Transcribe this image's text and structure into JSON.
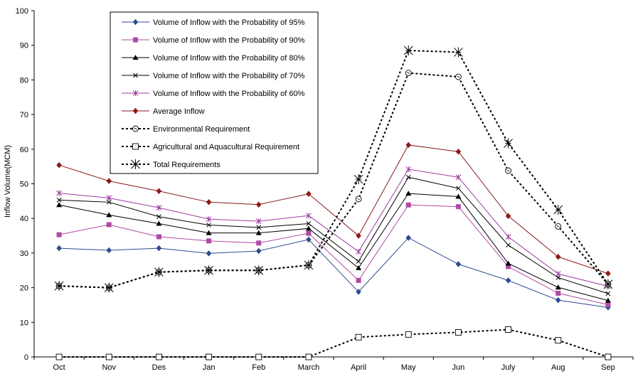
{
  "chart_data": {
    "type": "line",
    "title": "",
    "xlabel": "",
    "ylabel": "Inflow Volume(MCM)",
    "ylim": [
      0,
      100
    ],
    "y_ticks": [
      0,
      10,
      20,
      30,
      40,
      50,
      60,
      70,
      80,
      90,
      100
    ],
    "grid": false,
    "legend_position": "top-center",
    "categories": [
      "Oct",
      "Nov",
      "Des",
      "Jan",
      "Feb",
      "March",
      "April",
      "May",
      "Jun",
      "July",
      "Aug",
      "Sep"
    ],
    "series": [
      {
        "name": "Volume of Inflow with the Probability of 95%",
        "color": "#2E4C8E",
        "marker": "diamond",
        "dash": "solid",
        "values": [
          31.4,
          30.8,
          31.4,
          29.9,
          30.6,
          33.9,
          18.8,
          34.4,
          26.8,
          22.1,
          16.4,
          14.3
        ]
      },
      {
        "name": "Volume of Inflow with the Probability of 90%",
        "color": "#B04AA5",
        "marker": "square",
        "dash": "solid",
        "values": [
          35.3,
          38.2,
          34.7,
          33.5,
          32.9,
          35.7,
          22.1,
          43.9,
          43.4,
          26.1,
          18.4,
          15.1
        ]
      },
      {
        "name": "Volume of Inflow with the Probability of 80%",
        "color": "#000000",
        "marker": "triangle",
        "dash": "solid",
        "values": [
          43.9,
          41.0,
          38.5,
          35.8,
          35.8,
          37.1,
          25.7,
          47.2,
          46.3,
          27.0,
          20.1,
          16.3
        ]
      },
      {
        "name": "Volume of Inflow with the Probability of 70%",
        "color": "#000000",
        "marker": "x",
        "dash": "solid",
        "values": [
          45.3,
          44.7,
          40.5,
          38.1,
          37.4,
          38.5,
          27.6,
          51.9,
          48.7,
          32.3,
          22.9,
          18.3
        ]
      },
      {
        "name": "Volume of Inflow with the Probability of 60%",
        "color": "#9B3C9F",
        "marker": "star",
        "dash": "solid",
        "values": [
          47.3,
          45.9,
          43.1,
          39.8,
          39.2,
          40.8,
          30.4,
          54.2,
          51.9,
          34.7,
          24.0,
          20.4
        ]
      },
      {
        "name": "Average Inflow",
        "color": "#8B1A1A",
        "marker": "diamond",
        "dash": "solid",
        "values": [
          55.4,
          50.8,
          47.9,
          44.7,
          44.0,
          47.1,
          35.0,
          61.2,
          59.3,
          40.7,
          28.9,
          24.1
        ]
      },
      {
        "name": "Environmental Requirement",
        "color": "#000000",
        "marker": "circle",
        "dash": "dashed",
        "values": [
          20.5,
          20.0,
          24.5,
          25.0,
          25.0,
          26.5,
          45.6,
          82.0,
          80.9,
          53.8,
          37.7,
          21.0
        ]
      },
      {
        "name": "Agricultural and Aquacultural Requirement",
        "color": "#000000",
        "marker": "open-square",
        "dash": "dashed",
        "values": [
          0,
          0,
          0,
          0,
          0,
          0,
          5.7,
          6.5,
          7.1,
          7.9,
          4.8,
          0
        ]
      },
      {
        "name": "Total Requirements",
        "color": "#000000",
        "marker": "asterisk",
        "dash": "dashed",
        "values": [
          20.5,
          20.0,
          24.5,
          25.0,
          25.0,
          26.5,
          51.3,
          88.5,
          88.0,
          61.7,
          42.5,
          21.0
        ]
      }
    ]
  }
}
